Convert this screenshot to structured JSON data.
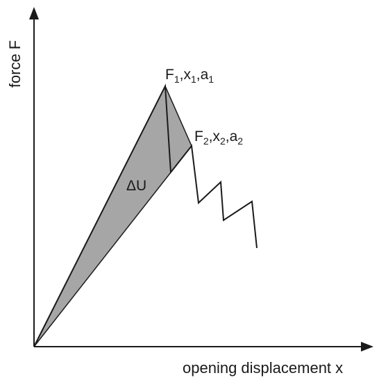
{
  "axes": {
    "x_label": "opening displacement x",
    "y_label": "force F"
  },
  "points": {
    "p1": {
      "F": "F",
      "F_sub": "1",
      "x": "x",
      "x_sub": "1",
      "a": "a",
      "a_sub": "1",
      "sep": ","
    },
    "p2": {
      "F": "F",
      "F_sub": "2",
      "x": "x",
      "x_sub": "2",
      "a": "a",
      "a_sub": "2",
      "sep": ","
    }
  },
  "area_label": "ΔU",
  "colors": {
    "line": "#1a1a1a",
    "shaded_area": "#a6a6a6",
    "background": "#ffffff"
  }
}
